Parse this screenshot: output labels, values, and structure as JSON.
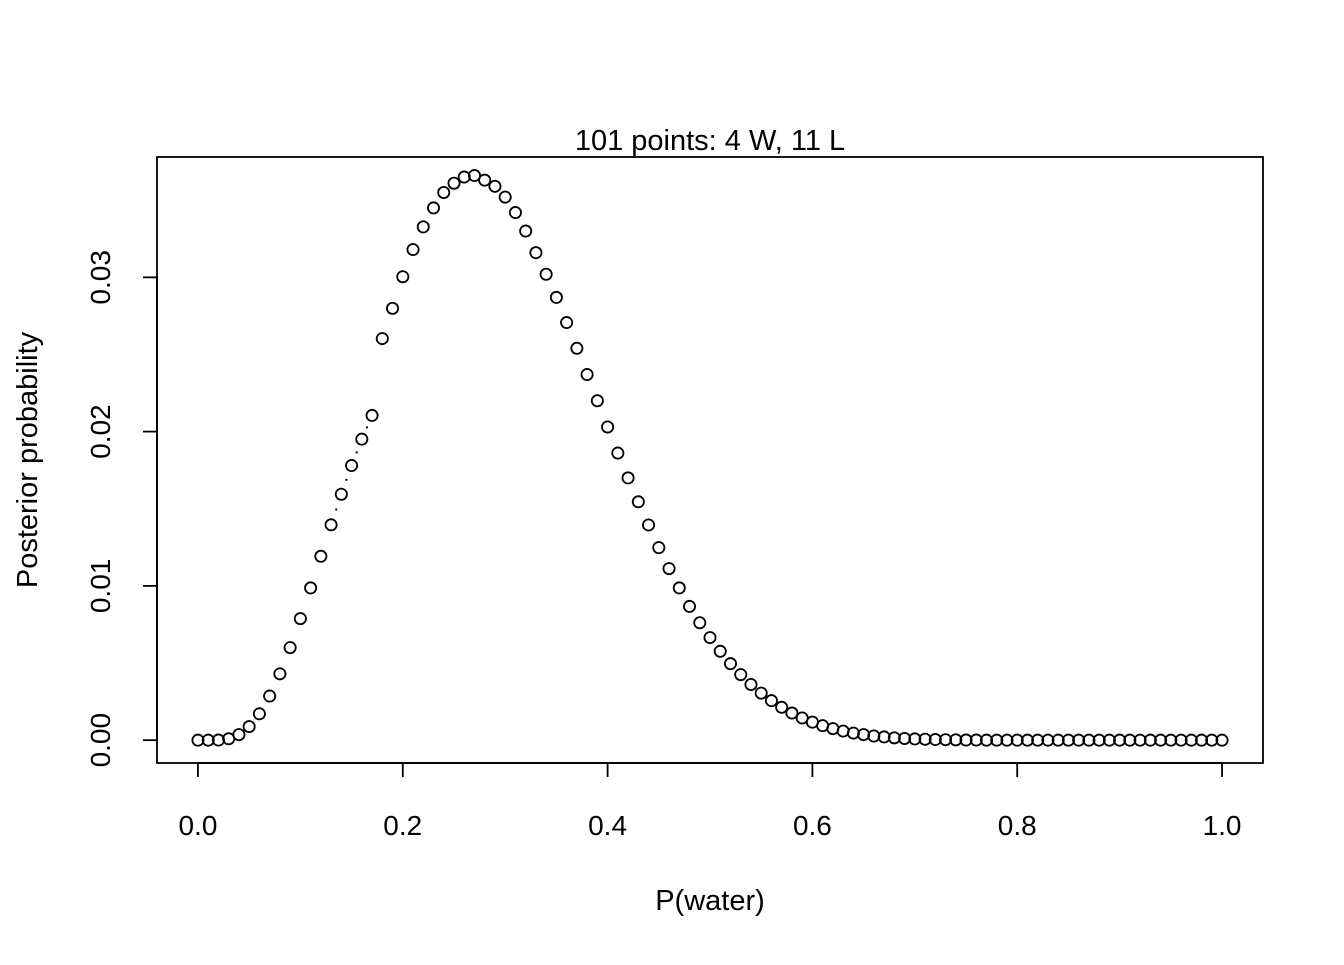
{
  "chart_data": {
    "type": "scatter",
    "title": "101 points: 4 W, 11 L",
    "xlabel": "P(water)",
    "ylabel": "Posterior probability",
    "xlim": [
      -0.04,
      1.04
    ],
    "ylim": [
      -0.00148,
      0.0378
    ],
    "xticks": [
      0.0,
      0.2,
      0.4,
      0.6,
      0.8,
      1.0
    ],
    "xtick_labels": [
      "0.0",
      "0.2",
      "0.4",
      "0.6",
      "0.8",
      "1.0"
    ],
    "yticks": [
      0.0,
      0.01,
      0.02,
      0.03
    ],
    "ytick_labels": [
      "0.00",
      "0.01",
      "0.02",
      "0.03"
    ],
    "grid": false,
    "legend": "none",
    "marker": "open-circle",
    "x": [
      0.0,
      0.01,
      0.02,
      0.03,
      0.04,
      0.05,
      0.06,
      0.07,
      0.08,
      0.09,
      0.1,
      0.11,
      0.12,
      0.13,
      0.14,
      0.15,
      0.16,
      0.17,
      0.18,
      0.19,
      0.2,
      0.21,
      0.22,
      0.23,
      0.24,
      0.25,
      0.26,
      0.27,
      0.28,
      0.29,
      0.3,
      0.31,
      0.32,
      0.33,
      0.34,
      0.35,
      0.36,
      0.37,
      0.38,
      0.39,
      0.4,
      0.41,
      0.42,
      0.43,
      0.44,
      0.45,
      0.46,
      0.47,
      0.48,
      0.49,
      0.5,
      0.51,
      0.52,
      0.53,
      0.54,
      0.55,
      0.56,
      0.57,
      0.58,
      0.59,
      0.6,
      0.61,
      0.62,
      0.63,
      0.64,
      0.65,
      0.66,
      0.67,
      0.68,
      0.69,
      0.7,
      0.71,
      0.72,
      0.73,
      0.74,
      0.75,
      0.76,
      0.77,
      0.78,
      0.79,
      0.8,
      0.81,
      0.82,
      0.83,
      0.84,
      0.85,
      0.86,
      0.87,
      0.88,
      0.89,
      0.9,
      0.91,
      0.92,
      0.93,
      0.94,
      0.95,
      0.96,
      0.97,
      0.98,
      0.99,
      1.0
    ],
    "y": [
      0.0,
      0.0,
      1e-05,
      9e-05,
      0.00036,
      0.00088,
      0.00171,
      0.00286,
      0.0043,
      0.006,
      0.00788,
      0.00987,
      0.01192,
      0.01396,
      0.01594,
      0.0178,
      0.01951,
      0.02105,
      0.02603,
      0.02799,
      0.03004,
      0.0318,
      0.03327,
      0.0345,
      0.0355,
      0.0361,
      0.0365,
      0.0366,
      0.0363,
      0.0359,
      0.0352,
      0.0342,
      0.033,
      0.0316,
      0.0302,
      0.0287,
      0.02707,
      0.0254,
      0.0237,
      0.022,
      0.0203,
      0.01861,
      0.017,
      0.01545,
      0.01395,
      0.01248,
      0.01112,
      0.00987,
      0.00867,
      0.00761,
      0.00665,
      0.00576,
      0.00496,
      0.00425,
      0.00361,
      0.00305,
      0.00256,
      0.00213,
      0.00176,
      0.00144,
      0.00117,
      0.00094,
      0.00075,
      0.00059,
      0.00046,
      0.00036,
      0.00027,
      0.00021,
      0.00015,
      0.00011,
      8e-05,
      6e-05,
      4e-05,
      3e-05,
      2e-05,
      1e-05,
      1e-05,
      0.0,
      0.0,
      0.0,
      0.0,
      0.0,
      0.0,
      0.0,
      0.0,
      0.0,
      0.0,
      0.0,
      0.0,
      0.0,
      0.0,
      0.0,
      0.0,
      0.0,
      0.0,
      0.0,
      0.0,
      0.0,
      0.0,
      0.0,
      0.0
    ],
    "small_dot_x": [
      0.135,
      0.145,
      0.155,
      0.165
    ]
  }
}
